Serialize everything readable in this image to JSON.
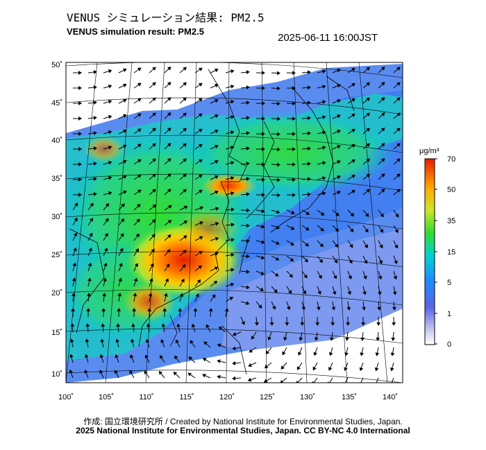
{
  "title_jp": "VENUS シミュレーション結果: PM2.5",
  "title_en": "VENUS simulation result: PM2.5",
  "timestamp": "2025-06-11 16:00JST",
  "credit_line1": "作成: 国立環境研究所 / Created by National Institute for Environmental Studies, Japan.",
  "credit_line2": "2025 National Institute for Environmental Studies, Japan. CC BY-NC 4.0 International",
  "lat_labels": [
    "50˚",
    "45˚",
    "40˚",
    "35˚",
    "30˚",
    "25˚",
    "20˚",
    "15˚",
    "10˚"
  ],
  "lon_labels": [
    "100˚",
    "105˚",
    "110˚",
    "115˚",
    "120˚",
    "125˚",
    "130˚",
    "135˚",
    "140˚"
  ],
  "colorbar": {
    "unit": "μg/m³",
    "tick_labels": [
      "70",
      "50",
      "35",
      "15",
      "5",
      "1",
      "0"
    ]
  }
}
